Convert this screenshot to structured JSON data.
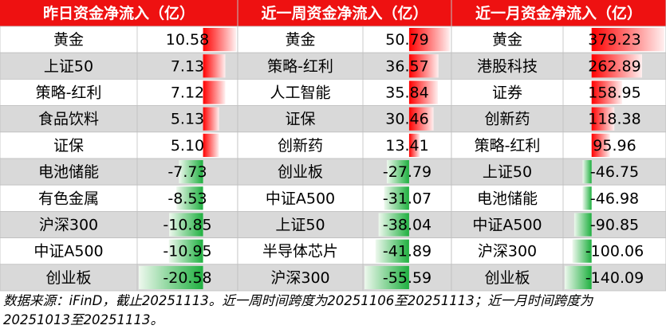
{
  "tables": [
    {
      "title": "昨日资金净流入（亿）",
      "names": [
        "黄金",
        "上证50",
        "策略-红利",
        "食品饮料",
        "证保",
        "电池储能",
        "有色金属",
        "沪深300",
        "中证A500",
        "创业板"
      ],
      "values": [
        10.58,
        7.13,
        7.12,
        5.13,
        5.1,
        -7.73,
        -8.53,
        -10.85,
        -10.95,
        -20.58
      ],
      "value_labels": [
        "10.58",
        "7.13",
        "7.12",
        "5.13",
        "5.10",
        "-7.73",
        "-8.53",
        "-10.85",
        "-10.95",
        "-20.58"
      ]
    },
    {
      "title": "近一周资金净流入（亿）",
      "names": [
        "黄金",
        "策略-红利",
        "人工智能",
        "证保",
        "创新药",
        "创业板",
        "中证A500",
        "上证50",
        "半导体芯片",
        "沪深300"
      ],
      "values": [
        50.79,
        36.57,
        35.84,
        30.46,
        13.41,
        -27.79,
        -31.07,
        -38.04,
        -41.89,
        -55.59
      ],
      "value_labels": [
        "50.79",
        "36.57",
        "35.84",
        "30.46",
        "13.41",
        "-27.79",
        "-31.07",
        "-38.04",
        "-41.89",
        "-55.59"
      ]
    },
    {
      "title": "近一月资金净流入（亿）",
      "names": [
        "黄金",
        "港股科技",
        "证券",
        "创新药",
        "策略-红利",
        "上证50",
        "电池储能",
        "中证A500",
        "沪深300",
        "创业板"
      ],
      "values": [
        379.23,
        262.89,
        158.95,
        118.38,
        95.96,
        -46.75,
        -46.98,
        -90.85,
        -100.06,
        -140.09
      ],
      "value_labels": [
        "379.23",
        "262.89",
        "158.95",
        "118.38",
        "95.96",
        "-46.75",
        "-46.98",
        "-90.85",
        "-100.06",
        "-140.09"
      ]
    }
  ],
  "footer": "数据来源：iFinD，截止20251113。近一周时间跨度为20251106至20251113；近一月时间跨度为20251013至20251113。"
}
